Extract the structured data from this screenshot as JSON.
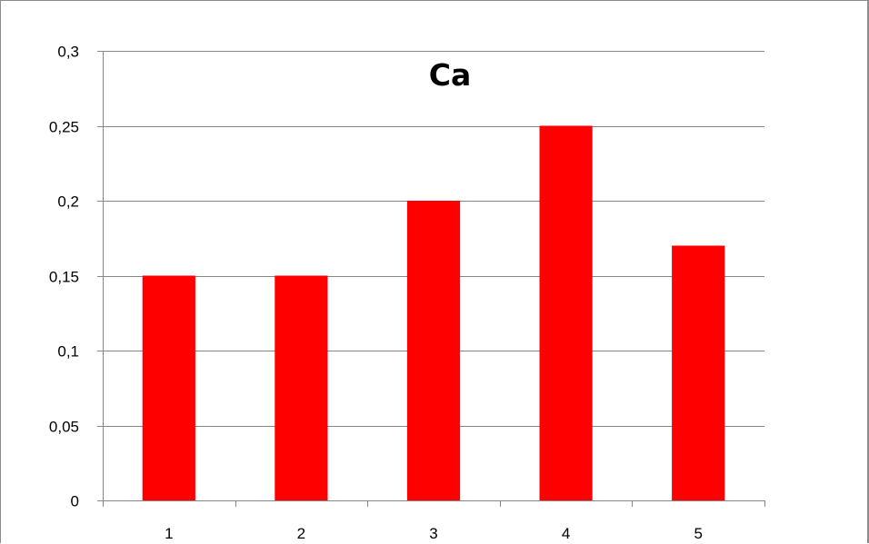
{
  "chart_data": {
    "type": "bar",
    "title": "Ca",
    "categories": [
      "1",
      "2",
      "3",
      "4",
      "5"
    ],
    "values": [
      0.15,
      0.15,
      0.2,
      0.25,
      0.17
    ],
    "ylim": [
      0,
      0.3
    ],
    "yticks": [
      0,
      0.05,
      0.1,
      0.15,
      0.2,
      0.25,
      0.3
    ],
    "ytick_labels": [
      "0",
      "0,05",
      "0,1",
      "0,15",
      "0,2",
      "0,25",
      "0,3"
    ],
    "xlabel": "",
    "ylabel": "",
    "grid": true,
    "legend": "none",
    "bar_color": "#ff0000",
    "grid_color": "#868686"
  }
}
